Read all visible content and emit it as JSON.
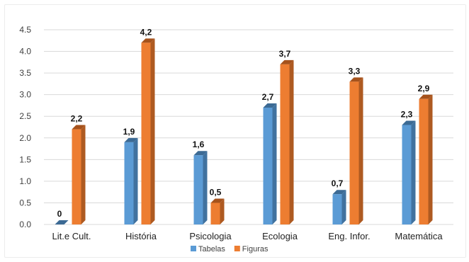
{
  "chart_data": {
    "type": "bar",
    "categories": [
      "Lit.e Cult.",
      "História",
      "Psicologia",
      "Ecologia",
      "Eng. Infor.",
      "Matemática"
    ],
    "series": [
      {
        "name": "Tabelas",
        "values": [
          0,
          1.9,
          1.6,
          2.7,
          0.7,
          2.3
        ],
        "color": "#5b9bd5",
        "side_color": "#41729f",
        "top_color": "#3c6a94",
        "labels": [
          "0",
          "1,9",
          "1,6",
          "2,7",
          "0,7",
          "2,3"
        ]
      },
      {
        "name": "Figuras",
        "values": [
          2.2,
          4.2,
          0.5,
          3.7,
          3.3,
          2.9
        ],
        "color": "#ed7d31",
        "side_color": "#ae5a21",
        "top_color": "#a5521c",
        "labels": [
          "2,2",
          "4,2",
          "0,5",
          "3,7",
          "3,3",
          "2,9"
        ]
      }
    ],
    "y_ticks": [
      "0.0",
      "0.5",
      "1.0",
      "1.5",
      "2.0",
      "2.5",
      "3.0",
      "3.5",
      "4.0",
      "4.5"
    ],
    "ylim": [
      0,
      4.5
    ],
    "grid": true,
    "legend_position": "bottom",
    "title": "",
    "xlabel": "",
    "ylabel": ""
  }
}
